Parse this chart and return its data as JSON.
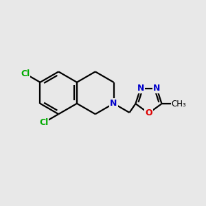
{
  "background_color": "#e8e8e8",
  "bond_color": "#000000",
  "atom_colors": {
    "N": "#0000cc",
    "O": "#dd0000",
    "Cl": "#00aa00",
    "C": "#000000"
  },
  "figsize": [
    3.0,
    3.0
  ],
  "dpi": 100
}
